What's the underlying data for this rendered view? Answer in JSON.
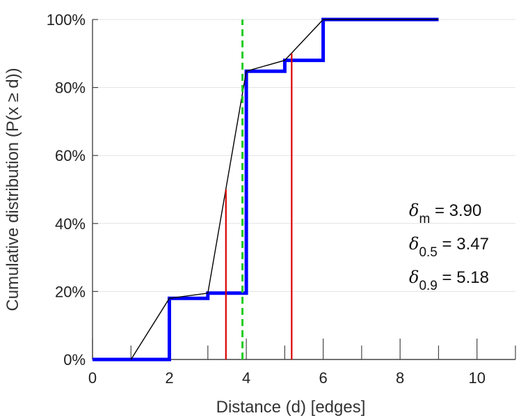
{
  "chart_data": {
    "type": "line",
    "xlabel": "Distance (d) [edges]",
    "ylabel": "Cumulative distribution (P(x ≥ d))",
    "xlim": [
      0,
      11
    ],
    "ylim": [
      0,
      1
    ],
    "x_ticks": [
      0,
      2,
      4,
      6,
      8,
      10
    ],
    "x_tick_labels": [
      "0",
      "2",
      "4",
      "6",
      "8",
      "10"
    ],
    "y_ticks": [
      0,
      0.2,
      0.4,
      0.6,
      0.8,
      1.0
    ],
    "y_tick_labels": [
      "0%",
      "20%",
      "40%",
      "60%",
      "80%",
      "100%"
    ],
    "grid": "horizontal",
    "series": [
      {
        "style": "step",
        "color": "#0000ff",
        "points": [
          [
            0,
            0
          ],
          [
            2,
            0
          ],
          [
            2,
            0.18
          ],
          [
            3,
            0.18
          ],
          [
            3,
            0.195
          ],
          [
            4,
            0.195
          ],
          [
            4,
            0.848
          ],
          [
            5,
            0.848
          ],
          [
            5,
            0.88
          ],
          [
            6,
            0.88
          ],
          [
            6,
            1.0
          ],
          [
            9,
            1.0
          ]
        ]
      },
      {
        "style": "line",
        "color": "#000000",
        "points": [
          [
            1,
            0
          ],
          [
            2,
            0.18
          ],
          [
            3,
            0.195
          ],
          [
            4,
            0.848
          ],
          [
            5,
            0.88
          ],
          [
            6,
            1.0
          ],
          [
            9,
            1.0
          ]
        ]
      }
    ],
    "vlines": [
      {
        "x": 3.47,
        "y_to": 0.5,
        "color": "#dd0000",
        "style": "solid"
      },
      {
        "x": 5.18,
        "y_to": 0.9,
        "color": "#dd0000",
        "style": "solid"
      },
      {
        "x": 3.9,
        "y_to": 1.0,
        "color": "#22cc22",
        "style": "dashed"
      }
    ],
    "annotations": [
      {
        "symbol": "δ",
        "subscript": "m",
        "text": " = 3.90"
      },
      {
        "symbol": "δ",
        "subscript": "0.5",
        "text": " = 3.47"
      },
      {
        "symbol": "δ",
        "subscript": "0.9",
        "text": " = 5.18"
      }
    ]
  }
}
